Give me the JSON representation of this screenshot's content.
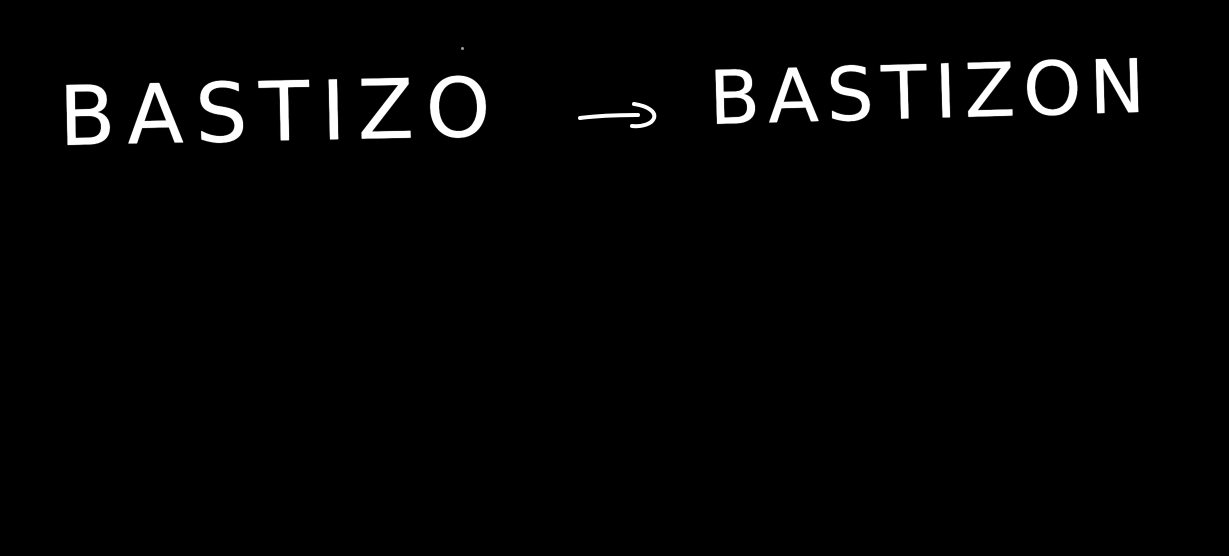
{
  "note": {
    "original_word": "BASTIZO",
    "corrected_word": "BASTIZON",
    "arrow_icon": "right-arrow-icon",
    "ink_color": "#ffffff",
    "background_color": "#000000"
  }
}
